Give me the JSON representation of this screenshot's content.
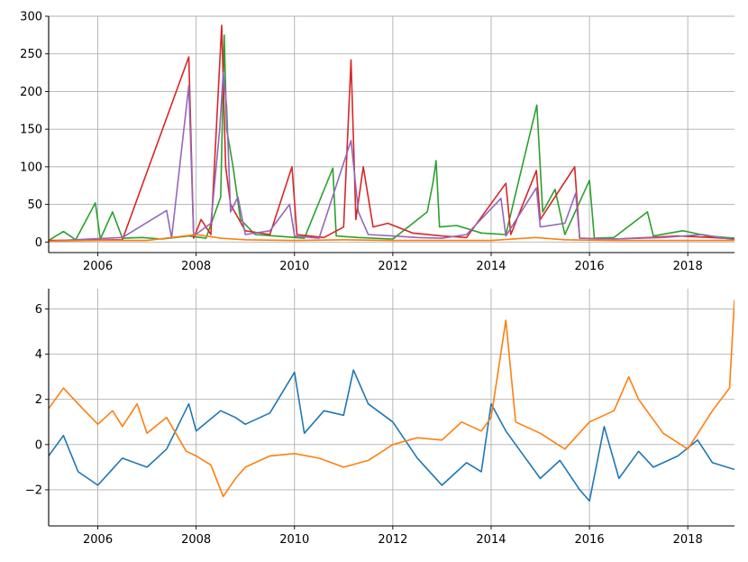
{
  "chart_data": [
    {
      "type": "line",
      "title": "",
      "xlabel": "",
      "ylabel": "",
      "xlim": [
        2005.0,
        2018.95
      ],
      "ylim": [
        -14,
        300
      ],
      "x_ticks": [
        2006,
        2008,
        2010,
        2012,
        2014,
        2016,
        2018
      ],
      "x_tick_labels": [
        "2006",
        "2008",
        "2010",
        "2012",
        "2014",
        "2016",
        "2018"
      ],
      "y_ticks": [
        0,
        50,
        100,
        150,
        200,
        250,
        300
      ],
      "y_tick_labels": [
        "0",
        "50",
        "100",
        "150",
        "200",
        "250",
        "300"
      ],
      "grid": true,
      "series": [
        {
          "color": "#2ca02c",
          "points": [
            [
              2005.0,
              2
            ],
            [
              2005.3,
              14
            ],
            [
              2005.55,
              3
            ],
            [
              2005.95,
              52
            ],
            [
              2006.05,
              4
            ],
            [
              2006.3,
              40
            ],
            [
              2006.5,
              5
            ],
            [
              2006.9,
              6
            ],
            [
              2007.3,
              4
            ],
            [
              2007.85,
              8
            ],
            [
              2008.2,
              5
            ],
            [
              2008.5,
              60
            ],
            [
              2008.57,
              275
            ],
            [
              2008.62,
              150
            ],
            [
              2008.75,
              100
            ],
            [
              2008.9,
              30
            ],
            [
              2009.2,
              10
            ],
            [
              2009.6,
              8
            ],
            [
              2010.2,
              5
            ],
            [
              2010.78,
              98
            ],
            [
              2010.85,
              8
            ],
            [
              2011.3,
              6
            ],
            [
              2012.0,
              4
            ],
            [
              2012.7,
              40
            ],
            [
              2012.82,
              80
            ],
            [
              2012.88,
              108
            ],
            [
              2012.95,
              20
            ],
            [
              2013.3,
              22
            ],
            [
              2013.8,
              12
            ],
            [
              2014.3,
              10
            ],
            [
              2014.93,
              182
            ],
            [
              2015.05,
              40
            ],
            [
              2015.3,
              70
            ],
            [
              2015.5,
              10
            ],
            [
              2016.0,
              82
            ],
            [
              2016.1,
              5
            ],
            [
              2016.5,
              6
            ],
            [
              2017.18,
              40
            ],
            [
              2017.3,
              8
            ],
            [
              2017.9,
              15
            ],
            [
              2018.4,
              8
            ],
            [
              2018.95,
              5
            ]
          ]
        },
        {
          "color": "#d62728",
          "points": [
            [
              2005.0,
              2
            ],
            [
              2006.5,
              3
            ],
            [
              2007.85,
              246
            ],
            [
              2007.95,
              5
            ],
            [
              2008.1,
              30
            ],
            [
              2008.3,
              10
            ],
            [
              2008.52,
              288
            ],
            [
              2008.6,
              100
            ],
            [
              2008.7,
              50
            ],
            [
              2009.0,
              15
            ],
            [
              2009.5,
              10
            ],
            [
              2009.95,
              100
            ],
            [
              2010.05,
              10
            ],
            [
              2010.6,
              6
            ],
            [
              2011.0,
              20
            ],
            [
              2011.15,
              242
            ],
            [
              2011.25,
              30
            ],
            [
              2011.4,
              100
            ],
            [
              2011.6,
              20
            ],
            [
              2011.9,
              25
            ],
            [
              2012.4,
              12
            ],
            [
              2013.0,
              8
            ],
            [
              2013.5,
              6
            ],
            [
              2014.3,
              78
            ],
            [
              2014.4,
              10
            ],
            [
              2014.92,
              95
            ],
            [
              2015.0,
              30
            ],
            [
              2015.7,
              100
            ],
            [
              2015.8,
              5
            ],
            [
              2016.5,
              4
            ],
            [
              2017.2,
              6
            ],
            [
              2017.8,
              8
            ],
            [
              2018.5,
              6
            ],
            [
              2018.95,
              4
            ]
          ]
        },
        {
          "color": "#9467bd",
          "points": [
            [
              2005.0,
              1
            ],
            [
              2005.5,
              3
            ],
            [
              2006.5,
              6
            ],
            [
              2007.4,
              42
            ],
            [
              2007.5,
              5
            ],
            [
              2007.85,
              208
            ],
            [
              2007.95,
              8
            ],
            [
              2008.3,
              25
            ],
            [
              2008.48,
              150
            ],
            [
              2008.55,
              225
            ],
            [
              2008.62,
              180
            ],
            [
              2008.7,
              40
            ],
            [
              2008.85,
              60
            ],
            [
              2009.0,
              10
            ],
            [
              2009.5,
              15
            ],
            [
              2009.9,
              50
            ],
            [
              2010.0,
              8
            ],
            [
              2010.5,
              5
            ],
            [
              2011.15,
              135
            ],
            [
              2011.3,
              40
            ],
            [
              2011.5,
              10
            ],
            [
              2012.0,
              8
            ],
            [
              2012.5,
              6
            ],
            [
              2013.0,
              5
            ],
            [
              2013.5,
              10
            ],
            [
              2014.2,
              58
            ],
            [
              2014.3,
              8
            ],
            [
              2014.92,
              72
            ],
            [
              2015.0,
              20
            ],
            [
              2015.5,
              25
            ],
            [
              2015.72,
              65
            ],
            [
              2015.8,
              5
            ],
            [
              2016.5,
              4
            ],
            [
              2017.5,
              6
            ],
            [
              2018.3,
              10
            ],
            [
              2018.95,
              3
            ]
          ]
        },
        {
          "color": "#ff7f0e",
          "points": [
            [
              2005.0,
              1
            ],
            [
              2006.0,
              2
            ],
            [
              2007.0,
              2
            ],
            [
              2008.0,
              10
            ],
            [
              2008.5,
              5
            ],
            [
              2009.0,
              3
            ],
            [
              2010.0,
              2
            ],
            [
              2011.0,
              3
            ],
            [
              2012.0,
              2
            ],
            [
              2013.0,
              2
            ],
            [
              2014.0,
              2
            ],
            [
              2014.9,
              6
            ],
            [
              2015.5,
              3
            ],
            [
              2016.5,
              2
            ],
            [
              2017.5,
              2
            ],
            [
              2018.95,
              2
            ]
          ]
        }
      ]
    },
    {
      "type": "line",
      "title": "",
      "xlabel": "",
      "ylabel": "",
      "xlim": [
        2005.0,
        2018.95
      ],
      "ylim": [
        -3.6,
        6.9
      ],
      "x_ticks": [
        2006,
        2008,
        2010,
        2012,
        2014,
        2016,
        2018
      ],
      "x_tick_labels": [
        "2006",
        "2008",
        "2010",
        "2012",
        "2014",
        "2016",
        "2018"
      ],
      "y_ticks": [
        -2,
        0,
        2,
        4,
        6
      ],
      "y_tick_labels": [
        "−2",
        "0",
        "2",
        "4",
        "6"
      ],
      "grid": true,
      "series": [
        {
          "color": "#1f77b4",
          "points": [
            [
              2005.0,
              -0.5
            ],
            [
              2005.3,
              0.4
            ],
            [
              2005.6,
              -1.2
            ],
            [
              2006.0,
              -1.8
            ],
            [
              2006.5,
              -0.6
            ],
            [
              2007.0,
              -1.0
            ],
            [
              2007.4,
              -0.2
            ],
            [
              2007.85,
              1.8
            ],
            [
              2008.0,
              0.6
            ],
            [
              2008.5,
              1.5
            ],
            [
              2008.8,
              1.2
            ],
            [
              2009.0,
              0.9
            ],
            [
              2009.5,
              1.4
            ],
            [
              2010.0,
              3.2
            ],
            [
              2010.2,
              0.5
            ],
            [
              2010.6,
              1.5
            ],
            [
              2011.0,
              1.3
            ],
            [
              2011.2,
              3.3
            ],
            [
              2011.5,
              1.8
            ],
            [
              2012.0,
              1.0
            ],
            [
              2012.5,
              -0.6
            ],
            [
              2013.0,
              -1.8
            ],
            [
              2013.5,
              -0.8
            ],
            [
              2013.8,
              -1.2
            ],
            [
              2014.0,
              1.8
            ],
            [
              2014.3,
              0.6
            ],
            [
              2015.0,
              -1.5
            ],
            [
              2015.4,
              -0.7
            ],
            [
              2015.8,
              -2.0
            ],
            [
              2016.0,
              -2.5
            ],
            [
              2016.3,
              0.8
            ],
            [
              2016.6,
              -1.5
            ],
            [
              2017.0,
              -0.3
            ],
            [
              2017.3,
              -1.0
            ],
            [
              2017.8,
              -0.5
            ],
            [
              2018.2,
              0.2
            ],
            [
              2018.5,
              -0.8
            ],
            [
              2018.95,
              -1.1
            ]
          ]
        },
        {
          "color": "#ff7f0e",
          "points": [
            [
              2005.0,
              1.6
            ],
            [
              2005.3,
              2.5
            ],
            [
              2005.6,
              1.8
            ],
            [
              2006.0,
              0.9
            ],
            [
              2006.3,
              1.5
            ],
            [
              2006.5,
              0.8
            ],
            [
              2006.8,
              1.8
            ],
            [
              2007.0,
              0.5
            ],
            [
              2007.4,
              1.2
            ],
            [
              2007.8,
              -0.3
            ],
            [
              2008.0,
              -0.5
            ],
            [
              2008.3,
              -0.9
            ],
            [
              2008.55,
              -2.3
            ],
            [
              2008.8,
              -1.5
            ],
            [
              2009.0,
              -1.0
            ],
            [
              2009.5,
              -0.5
            ],
            [
              2010.0,
              -0.4
            ],
            [
              2010.5,
              -0.6
            ],
            [
              2011.0,
              -1.0
            ],
            [
              2011.5,
              -0.7
            ],
            [
              2012.0,
              0.0
            ],
            [
              2012.5,
              0.3
            ],
            [
              2013.0,
              0.2
            ],
            [
              2013.4,
              1.0
            ],
            [
              2013.8,
              0.6
            ],
            [
              2014.0,
              1.2
            ],
            [
              2014.3,
              5.5
            ],
            [
              2014.5,
              1.0
            ],
            [
              2015.0,
              0.5
            ],
            [
              2015.5,
              -0.2
            ],
            [
              2016.0,
              1.0
            ],
            [
              2016.5,
              1.5
            ],
            [
              2016.8,
              3.0
            ],
            [
              2017.0,
              2.0
            ],
            [
              2017.5,
              0.5
            ],
            [
              2018.0,
              -0.2
            ],
            [
              2018.5,
              1.5
            ],
            [
              2018.85,
              2.5
            ],
            [
              2018.95,
              6.4
            ]
          ]
        }
      ]
    }
  ]
}
